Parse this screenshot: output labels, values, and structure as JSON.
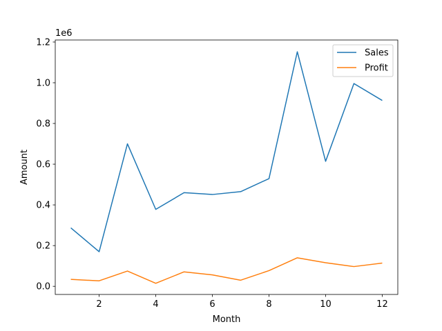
{
  "chart_data": {
    "type": "line",
    "title": "",
    "xlabel": "Month",
    "ylabel": "Amount",
    "y_offset_text": "1e6",
    "y_scale_factor": 1000000,
    "x": [
      1,
      2,
      3,
      4,
      5,
      6,
      7,
      8,
      9,
      10,
      11,
      12
    ],
    "xlim": [
      0.45,
      12.55
    ],
    "ylim": [
      -40000,
      1210000
    ],
    "x_ticks": [
      2,
      4,
      6,
      8,
      10,
      12
    ],
    "x_tick_labels": [
      "2",
      "4",
      "6",
      "8",
      "10",
      "12"
    ],
    "y_ticks": [
      0,
      200000,
      400000,
      600000,
      800000,
      1000000,
      1200000
    ],
    "y_tick_labels": [
      "0.0",
      "0.2",
      "0.4",
      "0.6",
      "0.8",
      "1.0",
      "1.2"
    ],
    "grid": false,
    "legend_position": "top-right",
    "series": [
      {
        "name": "Sales",
        "color": "#1f77b4",
        "values": [
          287000,
          170000,
          700000,
          378000,
          460000,
          451000,
          465000,
          529000,
          1152000,
          614000,
          996000,
          913000
        ]
      },
      {
        "name": "Profit",
        "color": "#ff7f0e",
        "values": [
          34000,
          27000,
          75000,
          15000,
          71000,
          56000,
          30000,
          77000,
          140000,
          116000,
          97000,
          114000
        ]
      }
    ]
  }
}
